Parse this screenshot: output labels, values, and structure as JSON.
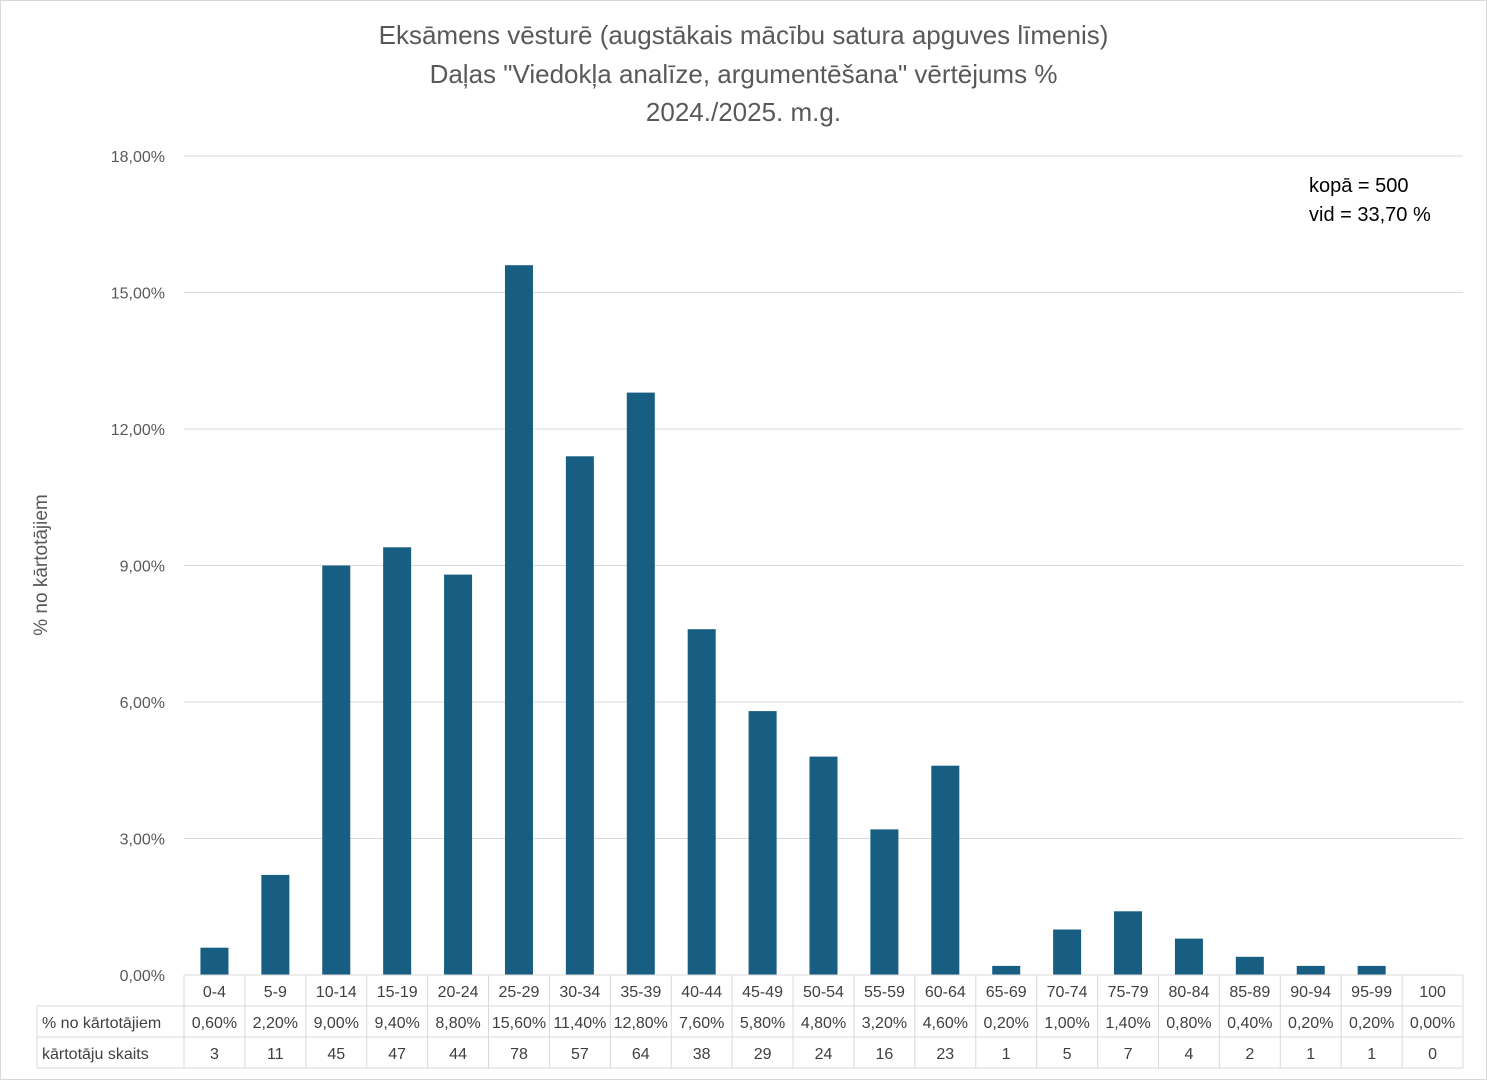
{
  "chart_data": {
    "type": "bar",
    "title": [
      "Eksāmens vēsturē (augstākais mācību satura apguves līmenis)",
      "Daļas \"Viedokļa analīze, argumentēšana\" vērtējums %",
      "2024./2025. m.g."
    ],
    "ylabel": "% no kārtotājiem",
    "ylim": [
      0,
      18
    ],
    "yticks": [
      "0,00%",
      "3,00%",
      "6,00%",
      "9,00%",
      "12,00%",
      "15,00%",
      "18,00%"
    ],
    "grid": true,
    "categories": [
      "0-4",
      "5-9",
      "10-14",
      "15-19",
      "20-24",
      "25-29",
      "30-34",
      "35-39",
      "40-44",
      "45-49",
      "50-54",
      "55-59",
      "60-64",
      "65-69",
      "70-74",
      "75-79",
      "80-84",
      "85-89",
      "90-94",
      "95-99",
      "100"
    ],
    "series": [
      {
        "name": "% no kārtotājiem",
        "values": [
          0.6,
          2.2,
          9.0,
          9.4,
          8.8,
          15.6,
          11.4,
          12.8,
          7.6,
          5.8,
          4.8,
          3.2,
          4.6,
          0.2,
          1.0,
          1.4,
          0.8,
          0.4,
          0.2,
          0.2,
          0.0
        ],
        "color": "#175e82"
      }
    ],
    "table": {
      "rows": [
        {
          "header": "% no kārtotājiem",
          "cells": [
            "0,60%",
            "2,20%",
            "9,00%",
            "9,40%",
            "8,80%",
            "15,60%",
            "11,40%",
            "12,80%",
            "7,60%",
            "5,80%",
            "4,80%",
            "3,20%",
            "4,60%",
            "0,20%",
            "1,00%",
            "1,40%",
            "0,80%",
            "0,40%",
            "0,20%",
            "0,20%",
            "0,00%"
          ]
        },
        {
          "header": "kārtotāju skaits",
          "cells": [
            "3",
            "11",
            "45",
            "47",
            "44",
            "78",
            "57",
            "64",
            "38",
            "29",
            "24",
            "16",
            "23",
            "1",
            "5",
            "7",
            "4",
            "2",
            "1",
            "1",
            "0"
          ]
        }
      ]
    },
    "annotations": [
      "kopā = 500",
      "vid = 33,70 %"
    ]
  }
}
